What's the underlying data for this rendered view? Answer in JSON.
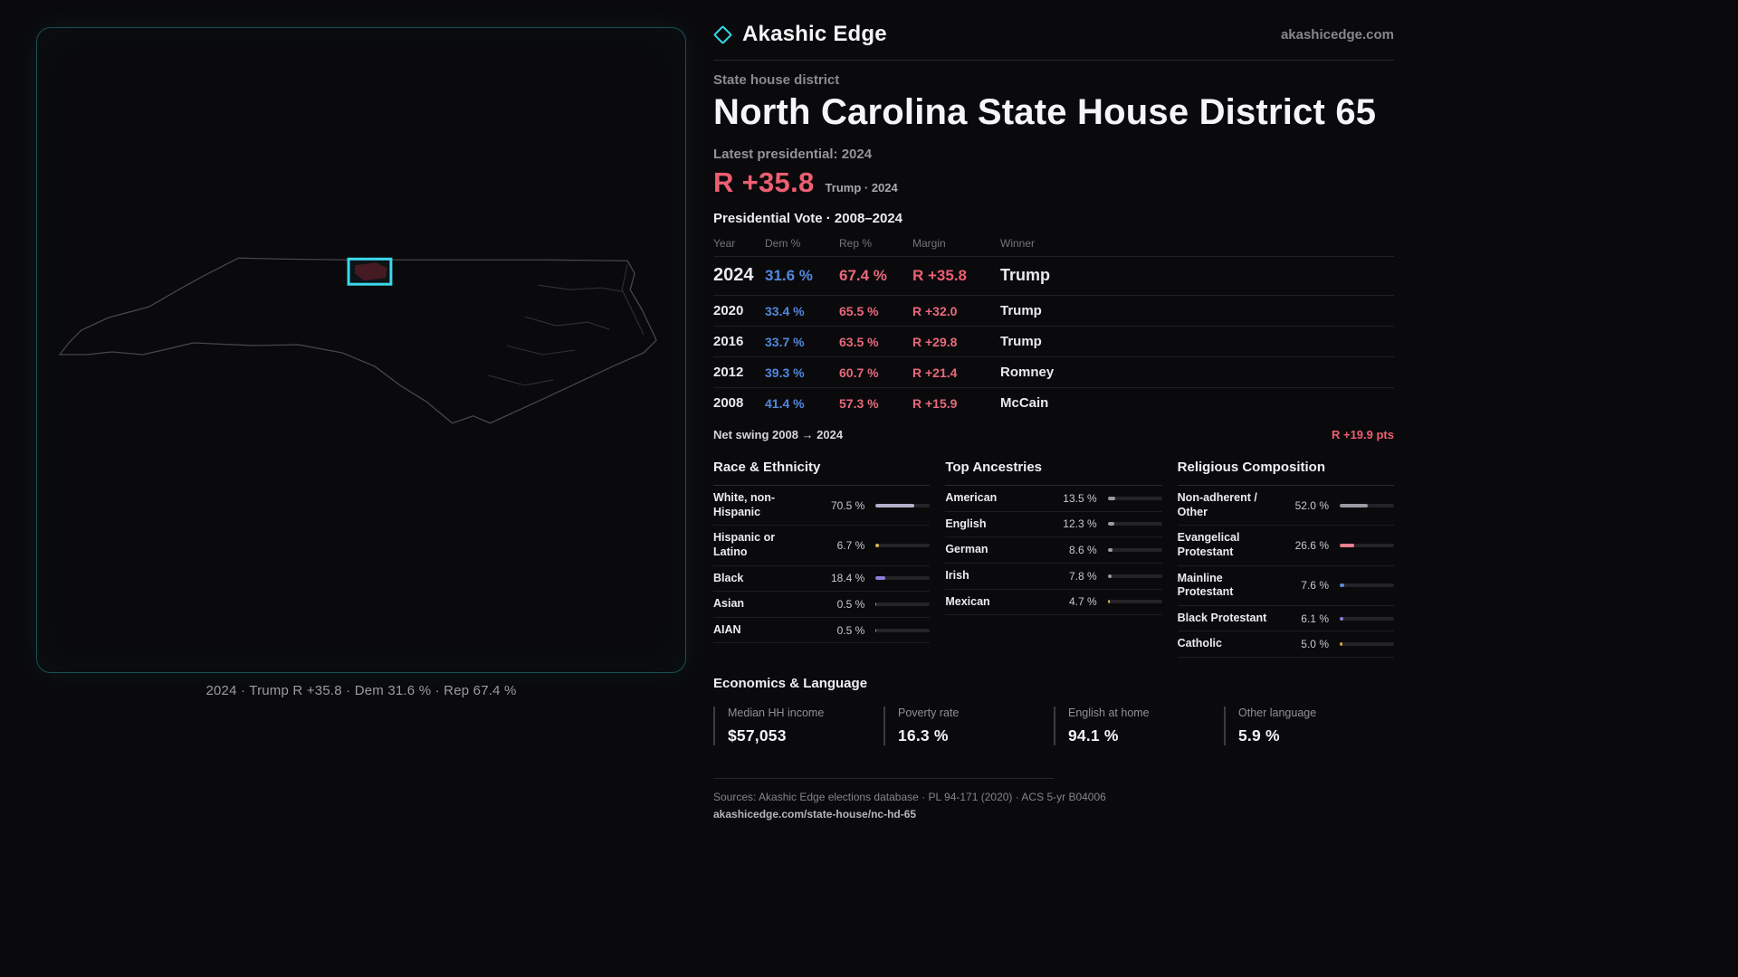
{
  "brand": {
    "name": "Akashic Edge",
    "site": "akashicedge.com"
  },
  "map": {
    "caption": "2024 · Trump R +35.8 · Dem 31.6 % · Rep 67.4 %",
    "highlight_color": "#35d6e8"
  },
  "header": {
    "kicker": "State house district",
    "title": "North Carolina State House District 65",
    "latest_label": "Latest presidential: 2024",
    "margin_big": "R +35.8",
    "margin_sub": "Trump · 2024"
  },
  "table": {
    "title": "Presidential Vote · 2008–2024",
    "columns": {
      "year": "Year",
      "dem": "Dem %",
      "rep": "Rep %",
      "margin": "Margin",
      "winner": "Winner"
    },
    "rows": [
      {
        "year": "2024",
        "dem": "31.6 %",
        "rep": "67.4 %",
        "margin": "R +35.8",
        "winner": "Trump"
      },
      {
        "year": "2020",
        "dem": "33.4 %",
        "rep": "65.5 %",
        "margin": "R +32.0",
        "winner": "Trump"
      },
      {
        "year": "2016",
        "dem": "33.7 %",
        "rep": "63.5 %",
        "margin": "R +29.8",
        "winner": "Trump"
      },
      {
        "year": "2012",
        "dem": "39.3 %",
        "rep": "60.7 %",
        "margin": "R +21.4",
        "winner": "Romney"
      },
      {
        "year": "2008",
        "dem": "41.4 %",
        "rep": "57.3 %",
        "margin": "R +15.9",
        "winner": "McCain"
      }
    ],
    "net_swing_label": "Net swing 2008 → 2024",
    "net_swing_value": "R +19.9 pts"
  },
  "demographics": [
    {
      "title": "Race & Ethnicity",
      "rows": [
        {
          "label": "White, non-Hispanic",
          "value": "70.5 %",
          "pct": 70.5,
          "color": "#b5b0ca"
        },
        {
          "label": "Hispanic or Latino",
          "value": "6.7 %",
          "pct": 6.7,
          "color": "#d9b845"
        },
        {
          "label": "Black",
          "value": "18.4 %",
          "pct": 18.4,
          "color": "#8d7fd8"
        },
        {
          "label": "Asian",
          "value": "0.5 %",
          "pct": 0.5,
          "color": "#9a9aa2"
        },
        {
          "label": "AIAN",
          "value": "0.5 %",
          "pct": 0.5,
          "color": "#9a9aa2"
        }
      ]
    },
    {
      "title": "Top Ancestries",
      "rows": [
        {
          "label": "American",
          "value": "13.5 %",
          "pct": 13.5,
          "color": "#9a9aa2"
        },
        {
          "label": "English",
          "value": "12.3 %",
          "pct": 12.3,
          "color": "#9a9aa2"
        },
        {
          "label": "German",
          "value": "8.6 %",
          "pct": 8.6,
          "color": "#9a9aa2"
        },
        {
          "label": "Irish",
          "value": "7.8 %",
          "pct": 7.8,
          "color": "#9a9aa2"
        },
        {
          "label": "Mexican",
          "value": "4.7 %",
          "pct": 4.7,
          "color": "#d9b845"
        }
      ]
    },
    {
      "title": "Religious Composition",
      "rows": [
        {
          "label": "Non-adherent / Other",
          "value": "52.0 %",
          "pct": 52.0,
          "color": "#9a9aa2"
        },
        {
          "label": "Evangelical Protestant",
          "value": "26.6 %",
          "pct": 26.6,
          "color": "#e8808d"
        },
        {
          "label": "Mainline Protestant",
          "value": "7.6 %",
          "pct": 7.6,
          "color": "#5f8ada"
        },
        {
          "label": "Black Protestant",
          "value": "6.1 %",
          "pct": 6.1,
          "color": "#8d7fd8"
        },
        {
          "label": "Catholic",
          "value": "5.0 %",
          "pct": 5.0,
          "color": "#d9a245"
        }
      ]
    }
  ],
  "economics": {
    "title": "Economics & Language",
    "stats": [
      {
        "label": "Median HH income",
        "value": "$57,053"
      },
      {
        "label": "Poverty rate",
        "value": "16.3 %"
      },
      {
        "label": "English at home",
        "value": "94.1 %"
      },
      {
        "label": "Other language",
        "value": "5.9 %"
      }
    ]
  },
  "footer": {
    "sources": "Sources: Akashic Edge elections database · PL 94-171 (2020) · ACS 5-yr B04006",
    "permalink": "akashicedge.com/state-house/nc-hd-65"
  },
  "chart_data": [
    {
      "type": "table",
      "title": "Presidential Vote · 2008–2024",
      "columns": [
        "Year",
        "Dem %",
        "Rep %",
        "Margin",
        "Winner"
      ],
      "rows": [
        [
          2024,
          31.6,
          67.4,
          "R +35.8",
          "Trump"
        ],
        [
          2020,
          33.4,
          65.5,
          "R +32.0",
          "Trump"
        ],
        [
          2016,
          33.7,
          63.5,
          "R +29.8",
          "Trump"
        ],
        [
          2012,
          39.3,
          60.7,
          "R +21.4",
          "Romney"
        ],
        [
          2008,
          41.4,
          57.3,
          "R +15.9",
          "McCain"
        ]
      ],
      "note": "Net swing 2008 → 2024: R +19.9 pts"
    },
    {
      "type": "bar",
      "title": "Race & Ethnicity",
      "categories": [
        "White, non-Hispanic",
        "Hispanic or Latino",
        "Black",
        "Asian",
        "AIAN"
      ],
      "values": [
        70.5,
        6.7,
        18.4,
        0.5,
        0.5
      ],
      "unit": "%",
      "xlim": [
        0,
        100
      ],
      "orientation": "horizontal"
    },
    {
      "type": "bar",
      "title": "Top Ancestries",
      "categories": [
        "American",
        "English",
        "German",
        "Irish",
        "Mexican"
      ],
      "values": [
        13.5,
        12.3,
        8.6,
        7.8,
        4.7
      ],
      "unit": "%",
      "xlim": [
        0,
        100
      ],
      "orientation": "horizontal"
    },
    {
      "type": "bar",
      "title": "Religious Composition",
      "categories": [
        "Non-adherent / Other",
        "Evangelical Protestant",
        "Mainline Protestant",
        "Black Protestant",
        "Catholic"
      ],
      "values": [
        52.0,
        26.6,
        7.6,
        6.1,
        5.0
      ],
      "unit": "%",
      "xlim": [
        0,
        100
      ],
      "orientation": "horizontal"
    },
    {
      "type": "table",
      "title": "Economics & Language",
      "columns": [
        "Median HH income",
        "Poverty rate",
        "English at home",
        "Other language"
      ],
      "rows": [
        [
          "$57,053",
          "16.3 %",
          "94.1 %",
          "5.9 %"
        ]
      ]
    }
  ]
}
